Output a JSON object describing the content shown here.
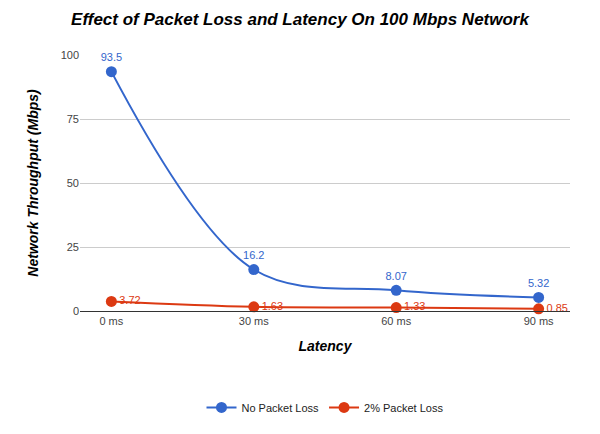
{
  "chart_data": {
    "type": "line",
    "title": "Effect of Packet Loss and Latency On 100 Mbps Network",
    "x_label": "Latency",
    "y_label": "Network Throughput (Mbps)",
    "categories": [
      "0 ms",
      "30 ms",
      "60 ms",
      "90 ms"
    ],
    "series": [
      {
        "name": "No Packet Loss",
        "color": "#3366cc",
        "values": [
          93.5,
          16.2,
          8.07,
          5.32
        ]
      },
      {
        "name": "2% Packet Loss",
        "color": "#dc3912",
        "values": [
          3.72,
          1.63,
          1.33,
          0.85
        ]
      }
    ],
    "ylim": [
      0,
      100
    ],
    "yticks": [
      0,
      25,
      50,
      75,
      100
    ],
    "grid": true,
    "legend": "bottom",
    "data_labels": true,
    "marker": "circle",
    "line_style": "smooth"
  }
}
